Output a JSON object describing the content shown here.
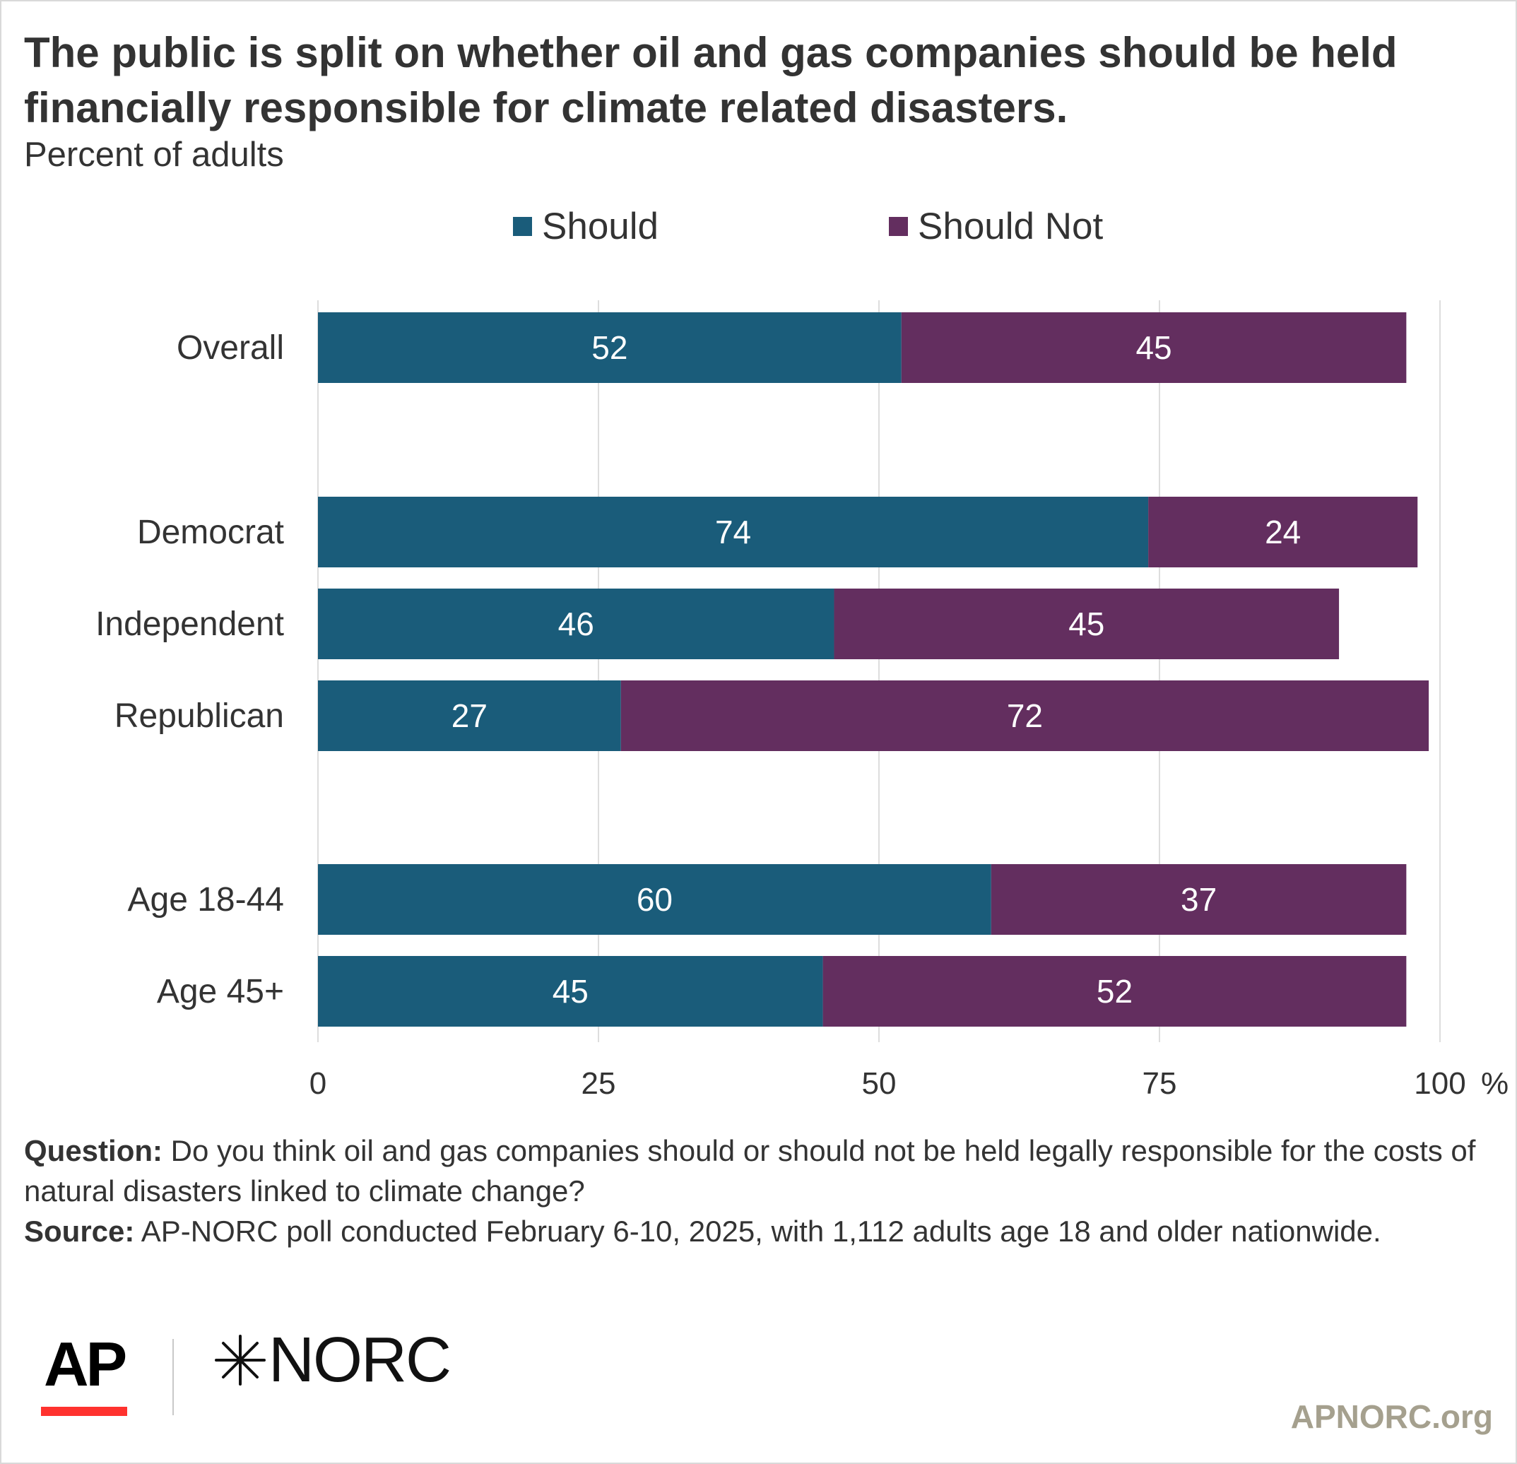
{
  "title": "The public is split on whether oil and gas companies should be held financially responsible for climate related disasters.",
  "subtitle": "Percent of adults",
  "legend": {
    "should": "Should",
    "should_not": "Should Not"
  },
  "colors": {
    "should": "#1a5c7a",
    "should_not": "#632e5f",
    "grid": "#dddddd",
    "ap_red": "#ff322e",
    "site_text": "#a5a08e"
  },
  "chart_data": {
    "type": "bar",
    "orientation": "horizontal",
    "stacked": true,
    "categories": [
      "Overall",
      "Democrat",
      "Independent",
      "Republican",
      "Age 18-44",
      "Age 45+"
    ],
    "series": [
      {
        "name": "Should",
        "values": [
          52,
          74,
          46,
          27,
          60,
          45
        ]
      },
      {
        "name": "Should Not",
        "values": [
          45,
          24,
          45,
          72,
          37,
          52
        ]
      }
    ],
    "xlim": [
      0,
      100
    ],
    "xticks": [
      "0",
      "25",
      "50",
      "75",
      "100"
    ],
    "x_unit": "%",
    "grid": true,
    "legend_position": "top"
  },
  "footnote": {
    "question_label": "Question:",
    "question_text": " Do you think oil and gas companies should or should not be held legally responsible for the costs of natural disasters linked to climate change?",
    "source_label": "Source:",
    "source_text": " AP-NORC poll conducted February 6-10, 2025, with 1,112 adults age 18 and older nationwide."
  },
  "logos": {
    "ap": "AP",
    "norc": "NORC"
  },
  "site": "APNORC.org"
}
